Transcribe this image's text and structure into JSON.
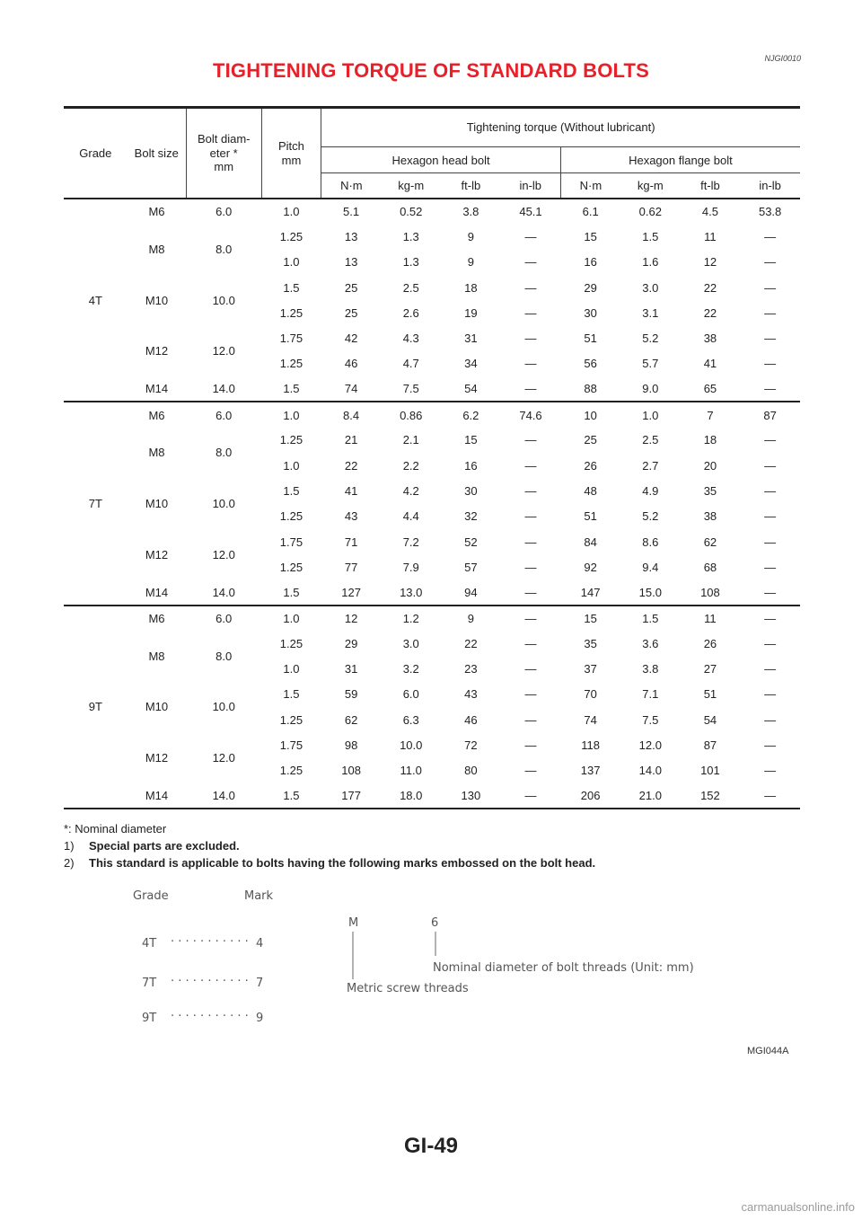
{
  "doc_ref": "NJGI0010",
  "title": "TIGHTENING TORQUE OF STANDARD BOLTS",
  "table": {
    "headers": {
      "grade": "Grade",
      "bolt_size": "Bolt size",
      "bolt_diameter": "Bolt diam-\neter *\nmm",
      "pitch": "Pitch\nmm",
      "torque_group": "Tightening torque (Without lubricant)",
      "hex_head": "Hexagon head bolt",
      "hex_flange": "Hexagon flange bolt",
      "units": [
        "N·m",
        "kg-m",
        "ft-lb",
        "in-lb",
        "N·m",
        "kg-m",
        "ft-lb",
        "in-lb"
      ]
    },
    "groups": [
      {
        "grade": "4T",
        "sizes": [
          {
            "size": "M6",
            "diameter": "6.0",
            "rows": [
              [
                "1.0",
                "5.1",
                "0.52",
                "3.8",
                "45.1",
                "6.1",
                "0.62",
                "4.5",
                "53.8"
              ]
            ]
          },
          {
            "size": "M8",
            "diameter": "8.0",
            "rows": [
              [
                "1.25",
                "13",
                "1.3",
                "9",
                "—",
                "15",
                "1.5",
                "11",
                "—"
              ],
              [
                "1.0",
                "13",
                "1.3",
                "9",
                "—",
                "16",
                "1.6",
                "12",
                "—"
              ]
            ]
          },
          {
            "size": "M10",
            "diameter": "10.0",
            "rows": [
              [
                "1.5",
                "25",
                "2.5",
                "18",
                "—",
                "29",
                "3.0",
                "22",
                "—"
              ],
              [
                "1.25",
                "25",
                "2.6",
                "19",
                "—",
                "30",
                "3.1",
                "22",
                "—"
              ]
            ]
          },
          {
            "size": "M12",
            "diameter": "12.0",
            "rows": [
              [
                "1.75",
                "42",
                "4.3",
                "31",
                "—",
                "51",
                "5.2",
                "38",
                "—"
              ],
              [
                "1.25",
                "46",
                "4.7",
                "34",
                "—",
                "56",
                "5.7",
                "41",
                "—"
              ]
            ]
          },
          {
            "size": "M14",
            "diameter": "14.0",
            "rows": [
              [
                "1.5",
                "74",
                "7.5",
                "54",
                "—",
                "88",
                "9.0",
                "65",
                "—"
              ]
            ]
          }
        ]
      },
      {
        "grade": "7T",
        "sizes": [
          {
            "size": "M6",
            "diameter": "6.0",
            "rows": [
              [
                "1.0",
                "8.4",
                "0.86",
                "6.2",
                "74.6",
                "10",
                "1.0",
                "7",
                "87"
              ]
            ]
          },
          {
            "size": "M8",
            "diameter": "8.0",
            "rows": [
              [
                "1.25",
                "21",
                "2.1",
                "15",
                "—",
                "25",
                "2.5",
                "18",
                "—"
              ],
              [
                "1.0",
                "22",
                "2.2",
                "16",
                "—",
                "26",
                "2.7",
                "20",
                "—"
              ]
            ]
          },
          {
            "size": "M10",
            "diameter": "10.0",
            "rows": [
              [
                "1.5",
                "41",
                "4.2",
                "30",
                "—",
                "48",
                "4.9",
                "35",
                "—"
              ],
              [
                "1.25",
                "43",
                "4.4",
                "32",
                "—",
                "51",
                "5.2",
                "38",
                "—"
              ]
            ]
          },
          {
            "size": "M12",
            "diameter": "12.0",
            "rows": [
              [
                "1.75",
                "71",
                "7.2",
                "52",
                "—",
                "84",
                "8.6",
                "62",
                "—"
              ],
              [
                "1.25",
                "77",
                "7.9",
                "57",
                "—",
                "92",
                "9.4",
                "68",
                "—"
              ]
            ]
          },
          {
            "size": "M14",
            "diameter": "14.0",
            "rows": [
              [
                "1.5",
                "127",
                "13.0",
                "94",
                "—",
                "147",
                "15.0",
                "108",
                "—"
              ]
            ]
          }
        ]
      },
      {
        "grade": "9T",
        "sizes": [
          {
            "size": "M6",
            "diameter": "6.0",
            "rows": [
              [
                "1.0",
                "12",
                "1.2",
                "9",
                "—",
                "15",
                "1.5",
                "11",
                "—"
              ]
            ]
          },
          {
            "size": "M8",
            "diameter": "8.0",
            "rows": [
              [
                "1.25",
                "29",
                "3.0",
                "22",
                "—",
                "35",
                "3.6",
                "26",
                "—"
              ],
              [
                "1.0",
                "31",
                "3.2",
                "23",
                "—",
                "37",
                "3.8",
                "27",
                "—"
              ]
            ]
          },
          {
            "size": "M10",
            "diameter": "10.0",
            "rows": [
              [
                "1.5",
                "59",
                "6.0",
                "43",
                "—",
                "70",
                "7.1",
                "51",
                "—"
              ],
              [
                "1.25",
                "62",
                "6.3",
                "46",
                "—",
                "74",
                "7.5",
                "54",
                "—"
              ]
            ]
          },
          {
            "size": "M12",
            "diameter": "12.0",
            "rows": [
              [
                "1.75",
                "98",
                "10.0",
                "72",
                "—",
                "118",
                "12.0",
                "87",
                "—"
              ],
              [
                "1.25",
                "108",
                "11.0",
                "80",
                "—",
                "137",
                "14.0",
                "101",
                "—"
              ]
            ]
          },
          {
            "size": "M14",
            "diameter": "14.0",
            "rows": [
              [
                "1.5",
                "177",
                "18.0",
                "130",
                "—",
                "206",
                "21.0",
                "152",
                "—"
              ]
            ]
          }
        ]
      }
    ]
  },
  "notes": {
    "footnote": "*: Nominal diameter",
    "items": [
      {
        "num": "1)",
        "text": "Special parts are excluded."
      },
      {
        "num": "2)",
        "text": "This standard is applicable to bolts having the following marks embossed on the bolt head."
      }
    ]
  },
  "figure": {
    "grade_header": "Grade",
    "mark_header": "Mark",
    "rows": [
      {
        "grade": "4T",
        "mark": "4"
      },
      {
        "grade": "7T",
        "mark": "7"
      },
      {
        "grade": "9T",
        "mark": "9"
      }
    ],
    "leader_dots": "· · · · · · · · · · ·",
    "letter_m": "M",
    "digit": "6",
    "nominal_label": "Nominal diameter of bolt threads (Unit: mm)",
    "metric_label": "Metric screw threads",
    "figure_id": "MGI044A"
  },
  "page_number": "GI-49",
  "watermark": "carmanualsonline.info"
}
